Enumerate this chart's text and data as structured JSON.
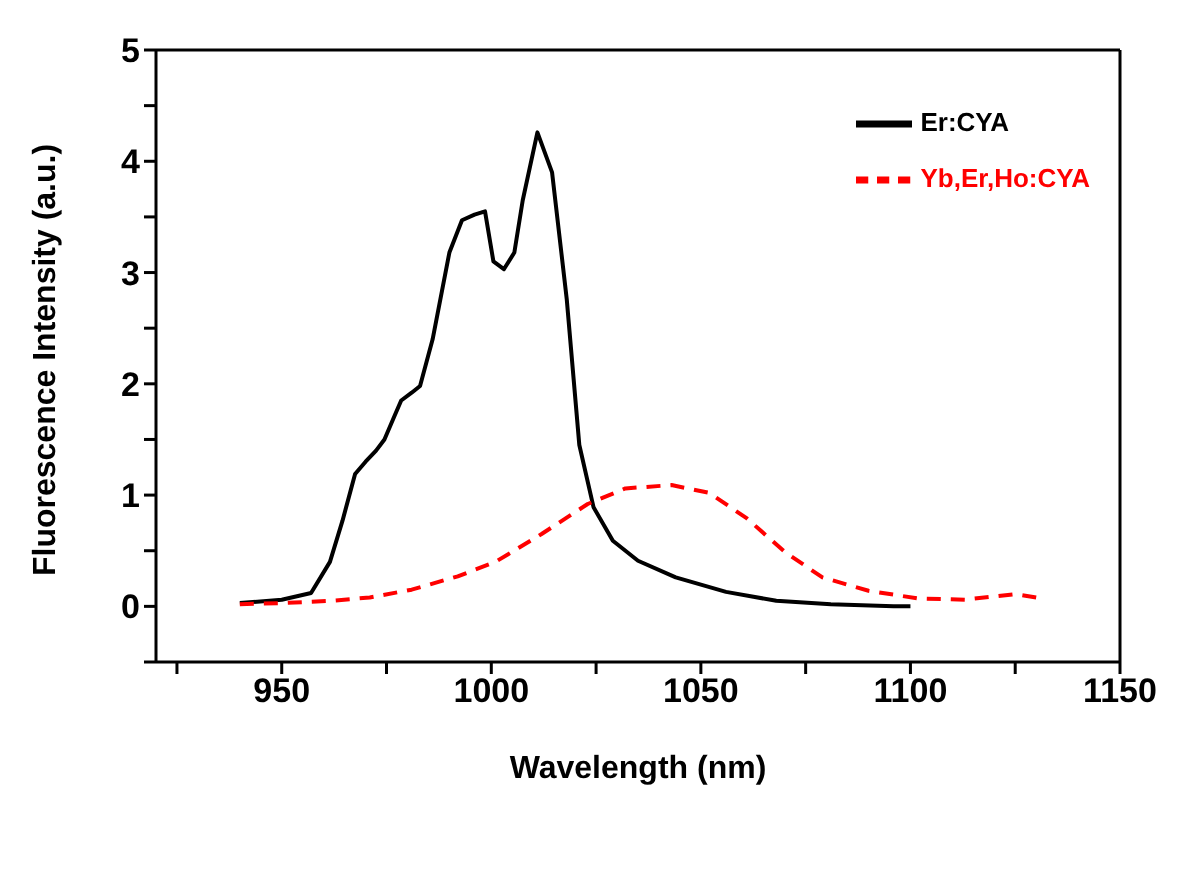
{
  "chart_data": {
    "type": "line",
    "xlabel": "Wavelength (nm)",
    "ylabel": "Fluorescence Intensity (a.u.)",
    "xlim": [
      920,
      1150
    ],
    "ylim": [
      -0.5,
      5
    ],
    "xticks": [
      {
        "value": 925,
        "label": null
      },
      950,
      {
        "value": 975,
        "label": null
      },
      1000,
      {
        "value": 1025,
        "label": null
      },
      1050,
      {
        "value": 1075,
        "label": null
      },
      1100,
      {
        "value": 1125,
        "label": null
      },
      1150
    ],
    "yticks": [
      {
        "value": -0.5,
        "label": null
      },
      0,
      {
        "value": 0.5,
        "label": null
      },
      1,
      {
        "value": 1.5,
        "label": null
      },
      2,
      {
        "value": 2.5,
        "label": null
      },
      3,
      {
        "value": 3.5,
        "label": null
      },
      4,
      {
        "value": 4.5,
        "label": null
      },
      5
    ],
    "legend": "top right",
    "marker": "none",
    "series": [
      {
        "name": "Er:CYA",
        "color": "#000000",
        "line_style": "solid",
        "x": [
          940,
          950,
          957,
          961.5,
          964.5,
          967.5,
          970,
          972.5,
          974.5,
          977,
          978.5,
          981,
          983,
          986,
          990,
          993,
          996,
          998.5,
          1000.5,
          1003,
          1005.5,
          1007.5,
          1011,
          1014.5,
          1018,
          1021,
          1024.4,
          1029,
          1035,
          1044,
          1056,
          1068,
          1081,
          1096,
          1100
        ],
        "values": [
          0.03,
          0.06,
          0.12,
          0.4,
          0.77,
          1.19,
          1.3,
          1.4,
          1.5,
          1.72,
          1.85,
          1.92,
          1.98,
          2.4,
          3.18,
          3.47,
          3.52,
          3.55,
          3.1,
          3.03,
          3.18,
          3.65,
          4.26,
          3.9,
          2.76,
          1.45,
          0.89,
          0.59,
          0.41,
          0.26,
          0.13,
          0.05,
          0.02,
          0.0,
          0.0
        ]
      },
      {
        "name": "Yb,Er,Ho:CYA",
        "color": "#ff0000",
        "line_style": "dashed",
        "x": [
          940,
          950,
          962,
          971,
          981,
          992,
          1001,
          1012,
          1023,
          1032,
          1043,
          1052,
          1061,
          1070,
          1079,
          1090,
          1102,
          1113,
          1125,
          1130
        ],
        "values": [
          0.02,
          0.03,
          0.05,
          0.08,
          0.15,
          0.27,
          0.4,
          0.65,
          0.92,
          1.06,
          1.09,
          1.02,
          0.79,
          0.49,
          0.26,
          0.14,
          0.07,
          0.06,
          0.11,
          0.08
        ]
      }
    ]
  }
}
